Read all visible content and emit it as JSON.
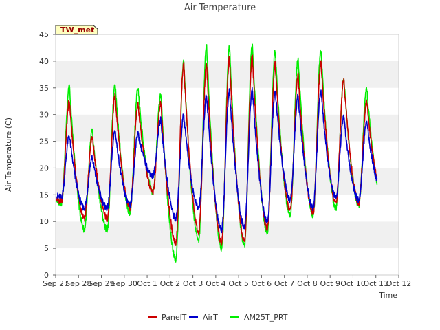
{
  "chart_data": {
    "type": "line",
    "title": "Air Temperature",
    "xlabel": "Time",
    "ylabel": "Air Temperature (C)",
    "station_label": "TW_met",
    "ylim": [
      0,
      45
    ],
    "yticks": [
      0,
      5,
      10,
      15,
      20,
      25,
      30,
      35,
      40,
      45
    ],
    "xlim": [
      "2024-09-27",
      "2024-10-12"
    ],
    "xtick_labels": [
      "Sep 27",
      "Sep 28",
      "Sep 29",
      "Sep 30",
      "Oct 1",
      "Oct 2",
      "Oct 3",
      "Oct 4",
      "Oct 5",
      "Oct 6",
      "Oct 7",
      "Oct 8",
      "Oct 9",
      "Oct 10",
      "Oct 11",
      "Oct 12"
    ],
    "grid": "horizontal bands",
    "legend_position": "bottom-center",
    "series": [
      {
        "name": "PanelT",
        "color": "#cc0000",
        "daily_min": [
          13.8,
          10.5,
          10.5,
          12.5,
          15.5,
          6.0,
          8.0,
          6.0,
          6.5,
          8.5,
          12.0,
          11.5,
          13.5,
          13.5,
          15.5
        ],
        "daily_max": [
          32.5,
          26.0,
          33.5,
          32.0,
          32.0,
          39.5,
          39.5,
          40.5,
          40.8,
          39.5,
          37.5,
          39.8,
          36.5,
          32.5
        ]
      },
      {
        "name": "AirT",
        "color": "#0000cc",
        "daily_min": [
          14.5,
          12.5,
          12.5,
          13.0,
          18.5,
          10.5,
          12.5,
          8.5,
          9.0,
          10.0,
          14.0,
          12.5,
          14.5,
          14.0,
          16.0
        ],
        "daily_max": [
          26.0,
          22.0,
          27.0,
          26.5,
          29.0,
          30.0,
          33.5,
          34.5,
          34.8,
          34.5,
          33.5,
          34.5,
          29.5,
          28.5
        ]
      },
      {
        "name": "AM25T_PRT",
        "color": "#00ee00",
        "daily_min": [
          13.5,
          8.5,
          8.5,
          11.5,
          15.5,
          3.0,
          6.5,
          5.0,
          5.5,
          8.0,
          11.0,
          11.0,
          12.5,
          13.0,
          14.5
        ],
        "daily_max": [
          35.5,
          27.0,
          36.0,
          35.0,
          34.0,
          40.0,
          43.0,
          43.0,
          43.2,
          42.0,
          40.5,
          42.2,
          37.0,
          35.0
        ]
      }
    ]
  }
}
